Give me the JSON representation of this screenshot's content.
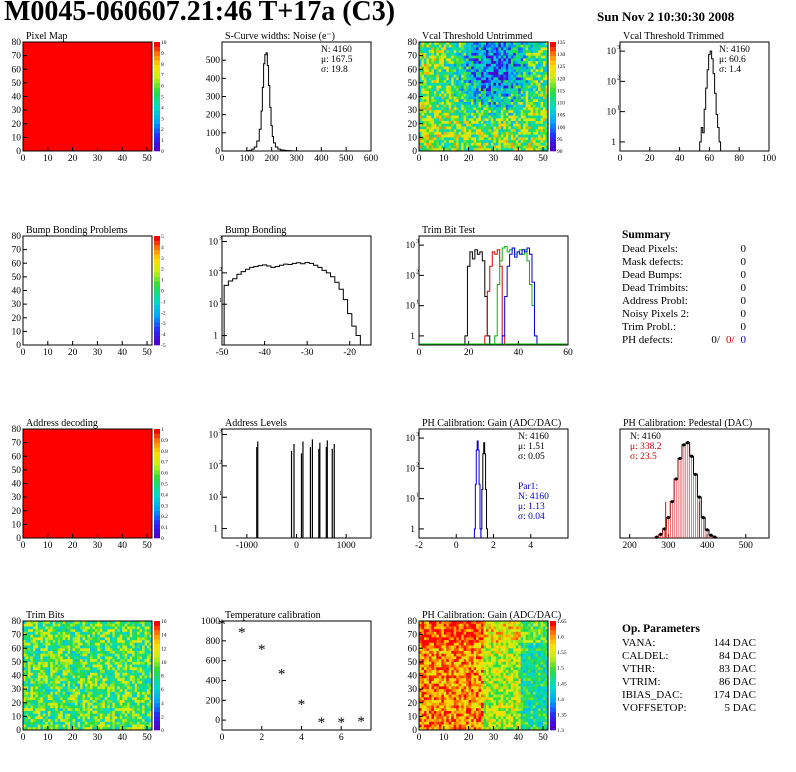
{
  "header": {
    "title": "M0045-060607.21:46 T+17a (C3)",
    "date": "Sun Nov  2 10:30:30 2008"
  },
  "summary": {
    "title": "Summary",
    "rows": [
      {
        "label": "Dead Pixels:",
        "value": "0"
      },
      {
        "label": "Mask defects:",
        "value": "0"
      },
      {
        "label": "Dead Bumps:",
        "value": "0"
      },
      {
        "label": "Dead Trimbits:",
        "value": "0"
      },
      {
        "label": "Address Probl:",
        "value": "0"
      },
      {
        "label": "Noisy Pixels 2:",
        "value": "0"
      },
      {
        "label": "Trim Probl.:",
        "value": "0"
      }
    ],
    "ph_defects": {
      "label": "PH defects:",
      "values": [
        "0/",
        "0/",
        "0"
      ],
      "colors": [
        "#000000",
        "#cc0000",
        "#0000cc"
      ]
    }
  },
  "op_params": {
    "title": "Op. Parameters",
    "rows": [
      {
        "label": "VANA:",
        "value": "144 DAC"
      },
      {
        "label": "CALDEL:",
        "value": "84 DAC"
      },
      {
        "label": "VTHR:",
        "value": "83 DAC"
      },
      {
        "label": "VTRIM:",
        "value": "86 DAC"
      },
      {
        "label": "IBIAS_DAC:",
        "value": "174 DAC"
      },
      {
        "label": "VOFFSETOP:",
        "value": "5 DAC"
      }
    ]
  },
  "chart_data": [
    {
      "id": "pixel_map",
      "type": "heatmap",
      "title": "Pixel Map",
      "fill": "uniform",
      "fill_color": "#ff0000",
      "xlim": [
        0,
        52
      ],
      "ylim": [
        0,
        80
      ],
      "xticks": [
        0,
        10,
        20,
        30,
        40,
        50
      ],
      "yticks": [
        0,
        10,
        20,
        30,
        40,
        50,
        60,
        70,
        80
      ],
      "palette_labels": [
        "0",
        "1",
        "2",
        "3",
        "4",
        "5",
        "6",
        "7",
        "8",
        "9",
        "10"
      ]
    },
    {
      "id": "scurve",
      "type": "histogram",
      "title": "S-Curve widths: Noise (e⁻)",
      "xlim": [
        0,
        600
      ],
      "ylim": [
        0,
        600
      ],
      "xticks": [
        0,
        100,
        200,
        300,
        400,
        500,
        600
      ],
      "yticks": [
        0,
        100,
        200,
        300,
        400,
        500
      ],
      "stats": [
        "N: 4160",
        "μ: 167.5",
        "σ: 19.8"
      ],
      "x": [
        105,
        115,
        125,
        135,
        145,
        155,
        160,
        165,
        170,
        175,
        180,
        185,
        190,
        195,
        200,
        205,
        210,
        220,
        230,
        240,
        250,
        260,
        270,
        290
      ],
      "y": [
        2,
        4,
        10,
        22,
        55,
        120,
        220,
        350,
        480,
        530,
        540,
        470,
        360,
        240,
        140,
        80,
        45,
        22,
        10,
        6,
        4,
        3,
        2,
        1
      ]
    },
    {
      "id": "vcal_untrimmed",
      "type": "heatmap",
      "title": "Vcal Threshold Untrimmed",
      "fill": "random",
      "seed": 3,
      "xlim": [
        0,
        52
      ],
      "ylim": [
        0,
        80
      ],
      "xticks": [
        0,
        10,
        20,
        30,
        40,
        50
      ],
      "yticks": [
        0,
        10,
        20,
        30,
        40,
        50,
        60,
        70,
        80
      ],
      "palette_labels": [
        "90",
        "95",
        "100",
        "105",
        "110",
        "115",
        "120",
        "125",
        "130",
        "135"
      ]
    },
    {
      "id": "vcal_trimmed",
      "type": "histogram",
      "title": "Vcal Threshold Trimmed",
      "log": true,
      "xlim": [
        0,
        100
      ],
      "ylim": [
        0.5,
        2000
      ],
      "xticks": [
        0,
        20,
        40,
        60,
        80,
        100
      ],
      "yticks_log": [
        1,
        10,
        100,
        1000
      ],
      "stats": [
        "N: 4160",
        "μ: 60.6",
        "σ:  1.4"
      ],
      "x": [
        54,
        55,
        56,
        57,
        58,
        59,
        60,
        61,
        62,
        63,
        64,
        65,
        66,
        67
      ],
      "y": [
        1,
        3,
        2,
        12,
        60,
        240,
        780,
        1000,
        560,
        180,
        40,
        8,
        3,
        1
      ]
    },
    {
      "id": "bump_problems",
      "type": "heatmap",
      "title": "Bump Bonding Problems",
      "fill": "empty",
      "xlim": [
        0,
        52
      ],
      "ylim": [
        0,
        80
      ],
      "xticks": [
        0,
        10,
        20,
        30,
        40,
        50
      ],
      "yticks": [
        0,
        10,
        20,
        30,
        40,
        50,
        60,
        70,
        80
      ],
      "palette_labels": [
        "-5",
        "-4",
        "-3",
        "-2",
        "-1",
        "0",
        "1",
        "2",
        "3",
        "4",
        "5"
      ]
    },
    {
      "id": "bump_bonding",
      "type": "histogram",
      "title": "Bump Bonding",
      "log": true,
      "xlim": [
        -50,
        -15
      ],
      "ylim": [
        0.5,
        1500
      ],
      "xticks": [
        -50,
        -40,
        -30,
        -20
      ],
      "yticks_log": [
        1,
        10,
        100,
        1000
      ],
      "x": [
        -49,
        -48,
        -47,
        -46,
        -45,
        -44,
        -43,
        -42,
        -41,
        -40,
        -39,
        -38,
        -37,
        -36,
        -35,
        -34,
        -33,
        -32,
        -31,
        -30,
        -29,
        -28,
        -27,
        -26,
        -25,
        -24,
        -23,
        -22,
        -21,
        -20,
        -19,
        -18
      ],
      "y": [
        40,
        55,
        65,
        90,
        110,
        130,
        150,
        160,
        170,
        180,
        165,
        150,
        160,
        175,
        190,
        185,
        200,
        210,
        195,
        215,
        200,
        175,
        150,
        120,
        100,
        75,
        50,
        30,
        14,
        5,
        2,
        1
      ]
    },
    {
      "id": "trim_bit",
      "type": "histogram",
      "title": "Trim Bit Test",
      "log": true,
      "xlim": [
        0,
        60
      ],
      "ylim": [
        0.5,
        2000
      ],
      "xticks": [
        0,
        20,
        40,
        60
      ],
      "yticks_log": [
        1,
        10,
        100,
        1000
      ],
      "series": [
        {
          "name": "trim0",
          "color": "#000000",
          "x": [
            19,
            20,
            21,
            22,
            23,
            24,
            25,
            26,
            27,
            28
          ],
          "y": [
            1,
            200,
            600,
            350,
            700,
            500,
            600,
            300,
            20,
            1
          ]
        },
        {
          "name": "trim1",
          "color": "#dd0000",
          "x": [
            27,
            28,
            29,
            30,
            31,
            32,
            33,
            34
          ],
          "y": [
            1,
            30,
            200,
            600,
            500,
            700,
            200,
            1
          ]
        },
        {
          "name": "trim2",
          "color": "#00bb00",
          "x": [
            31,
            32,
            33,
            34,
            35,
            36,
            37,
            38,
            39,
            40,
            41,
            42,
            43,
            44,
            45,
            46,
            47
          ],
          "y": [
            1,
            50,
            300,
            800,
            900,
            600,
            700,
            800,
            500,
            600,
            700,
            500,
            700,
            300,
            50,
            10,
            1
          ]
        },
        {
          "name": "trim3",
          "color": "#0000dd",
          "x": [
            34,
            35,
            36,
            37,
            38,
            39,
            40,
            41,
            42,
            43,
            44,
            45,
            46,
            47
          ],
          "y": [
            1,
            20,
            200,
            500,
            800,
            400,
            600,
            500,
            700,
            600,
            800,
            500,
            60,
            1
          ]
        }
      ]
    },
    {
      "id": "address_decoding",
      "type": "heatmap",
      "title": "Address decoding",
      "fill": "uniform",
      "fill_color": "#ff0000",
      "xlim": [
        0,
        52
      ],
      "ylim": [
        0,
        80
      ],
      "xticks": [
        0,
        10,
        20,
        30,
        40,
        50
      ],
      "yticks": [
        0,
        10,
        20,
        30,
        40,
        50,
        60,
        70,
        80
      ],
      "palette_labels": [
        "0",
        "0.1",
        "0.2",
        "0.3",
        "0.4",
        "0.5",
        "0.6",
        "0.7",
        "0.8",
        "0.9",
        "1"
      ]
    },
    {
      "id": "address_levels",
      "type": "spikes",
      "title": "Address Levels",
      "log": true,
      "xlim": [
        -1500,
        1500
      ],
      "ylim": [
        0.5,
        1500
      ],
      "xticks": [
        -1000,
        0,
        1000
      ],
      "yticks_log": [
        1,
        10,
        100,
        1000
      ],
      "x": [
        -800,
        -780,
        -100,
        -50,
        100,
        130,
        280,
        320,
        450,
        470,
        600,
        620,
        720,
        760
      ],
      "y": [
        400,
        600,
        300,
        500,
        250,
        600,
        400,
        700,
        350,
        550,
        400,
        650,
        350,
        500
      ]
    },
    {
      "id": "ph_gain",
      "type": "histogram",
      "title": "PH Calibration: Gain (ADC/DAC)",
      "log": true,
      "xlim": [
        -2,
        6
      ],
      "ylim": [
        0.5,
        2000
      ],
      "xticks": [
        -2,
        0,
        2,
        4
      ],
      "yticks_log": [
        1,
        10,
        100,
        1000
      ],
      "stats": [
        "N: 4160",
        "μ: 1.51",
        "σ: 0.05"
      ],
      "stats2": [
        "Par1:",
        "N: 4160",
        "μ: 1.13",
        "σ: 0.04"
      ],
      "series": [
        {
          "name": "gain",
          "color": "#000000",
          "x": [
            1.35,
            1.4,
            1.45,
            1.5,
            1.55,
            1.6,
            1.65
          ],
          "y": [
            1,
            20,
            300,
            700,
            300,
            20,
            1
          ]
        },
        {
          "name": "par1",
          "color": "#0000cc",
          "x": [
            1.0,
            1.05,
            1.1,
            1.15,
            1.2,
            1.25,
            1.3
          ],
          "y": [
            1,
            30,
            400,
            800,
            400,
            30,
            1
          ]
        }
      ]
    },
    {
      "id": "ph_pedestal",
      "type": "histogram",
      "title": "PH Calibration: Pedestal (DAC)",
      "xlim": [
        175,
        560
      ],
      "ylim": [
        0,
        240
      ],
      "xticks": [
        200,
        300,
        400,
        500
      ],
      "stats": [
        "N: 4160",
        "μ: 338.2",
        "σ: 23.5"
      ],
      "x": [
        270,
        280,
        290,
        300,
        310,
        320,
        330,
        340,
        350,
        360,
        370,
        380,
        390,
        400,
        410,
        420
      ],
      "y": [
        2,
        8,
        20,
        45,
        80,
        130,
        175,
        205,
        210,
        180,
        140,
        90,
        45,
        18,
        6,
        2
      ]
    },
    {
      "id": "trim_bits",
      "type": "heatmap",
      "title": "Trim Bits",
      "fill": "random",
      "seed": 7,
      "xlim": [
        0,
        52
      ],
      "ylim": [
        0,
        80
      ],
      "xticks": [
        0,
        10,
        20,
        30,
        40,
        50
      ],
      "yticks": [
        0,
        10,
        20,
        30,
        40,
        50,
        60,
        70,
        80
      ],
      "palette_labels": [
        "0",
        "2",
        "4",
        "6",
        "8",
        "10",
        "12",
        "14",
        "16"
      ]
    },
    {
      "id": "temperature",
      "type": "scatter",
      "title": "Temperature calibration",
      "xlim": [
        0,
        7.5
      ],
      "ylim": [
        -100,
        1000
      ],
      "xticks": [
        0,
        2,
        4,
        6
      ],
      "yticks": [
        0,
        200,
        400,
        600,
        800,
        1000
      ],
      "x": [
        0,
        1,
        2,
        3,
        4,
        5,
        6,
        7
      ],
      "y": [
        980,
        900,
        730,
        480,
        170,
        -10,
        -10,
        0
      ]
    },
    {
      "id": "ph_gain_map",
      "type": "heatmap",
      "title": "PH Calibration: Gain (ADC/DAC)",
      "fill": "gradient",
      "seed": 11,
      "xlim": [
        0,
        52
      ],
      "ylim": [
        0,
        80
      ],
      "xticks": [
        0,
        10,
        20,
        30,
        40,
        50
      ],
      "yticks": [
        0,
        10,
        20,
        30,
        40,
        50,
        60,
        70,
        80
      ],
      "palette_labels": [
        "1.3",
        "1.35",
        "1.4",
        "1.45",
        "1.5",
        "1.55",
        "1.6",
        "1.65"
      ]
    }
  ]
}
